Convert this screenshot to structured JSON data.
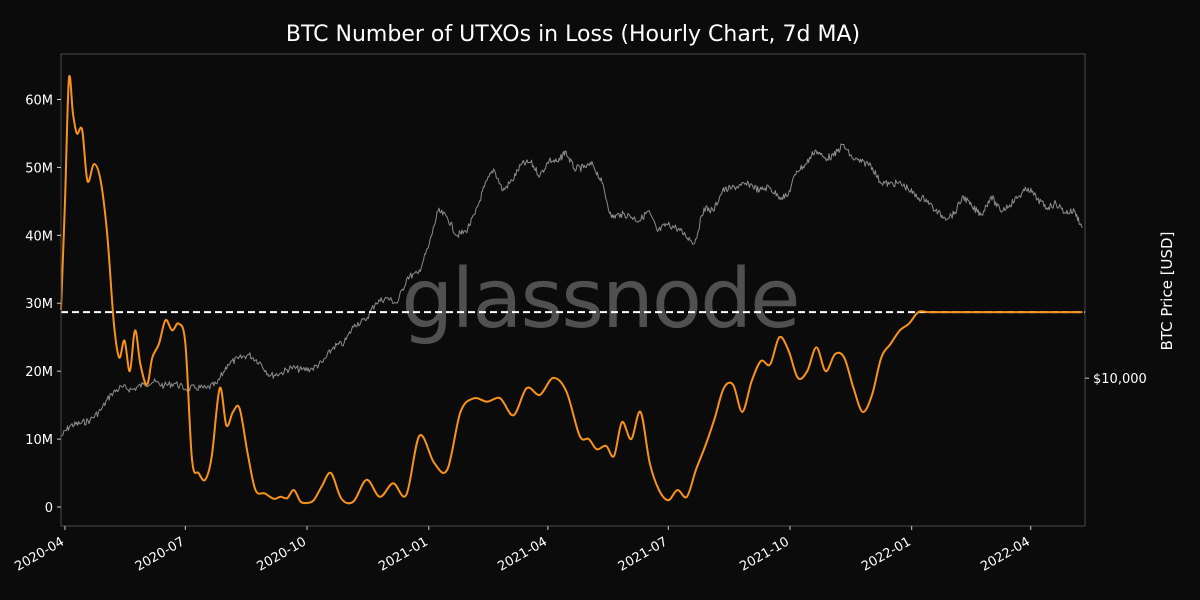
{
  "chart_data": {
    "type": "line",
    "title": "BTC Number of UTXOs in Loss (Hourly Chart, 7d MA)",
    "xlabel": "",
    "ylabel_left": "",
    "ylabel_right": "BTC Price [USD]",
    "watermark": "glassnode",
    "y_ticks": [
      {
        "value": 0,
        "label": "0"
      },
      {
        "value": 10000000,
        "label": "10M"
      },
      {
        "value": 20000000,
        "label": "20M"
      },
      {
        "value": 30000000,
        "label": "30M"
      },
      {
        "value": 40000000,
        "label": "40M"
      },
      {
        "value": 50000000,
        "label": "50M"
      },
      {
        "value": 60000000,
        "label": "60M"
      }
    ],
    "y_right_ticks": [
      {
        "value": 10000,
        "label": "$10,000"
      }
    ],
    "x_ticks": [
      {
        "date": "2020-04-01",
        "label": "2020-04"
      },
      {
        "date": "2020-07-01",
        "label": "2020-07"
      },
      {
        "date": "2020-10-01",
        "label": "2020-10"
      },
      {
        "date": "2021-01-01",
        "label": "2021-01"
      },
      {
        "date": "2021-04-01",
        "label": "2021-04"
      },
      {
        "date": "2021-07-01",
        "label": "2021-07"
      },
      {
        "date": "2021-10-01",
        "label": "2021-10"
      },
      {
        "date": "2022-01-01",
        "label": "2022-01"
      },
      {
        "date": "2022-04-01",
        "label": "2022-04"
      }
    ],
    "xlim": [
      "2020-03-29",
      "2022-05-12"
    ],
    "ylim": [
      -2800000,
      66700000
    ],
    "y2lim": [
      3000,
      140000
    ],
    "y2_scale": "log",
    "grid": false,
    "legend": "none",
    "reference_line": {
      "value": 28700000,
      "style": "dashed",
      "color": "#ffffff"
    },
    "series": [
      {
        "color": "#f7931a",
        "axis": "left",
        "x": [
          "2020-03-29",
          "2020-04-01",
          "2020-04-04",
          "2020-04-07",
          "2020-04-10",
          "2020-04-14",
          "2020-04-18",
          "2020-04-23",
          "2020-04-28",
          "2020-05-03",
          "2020-05-08",
          "2020-05-12",
          "2020-05-16",
          "2020-05-20",
          "2020-05-24",
          "2020-05-28",
          "2020-06-02",
          "2020-06-06",
          "2020-06-11",
          "2020-06-16",
          "2020-06-21",
          "2020-06-26",
          "2020-07-01",
          "2020-07-06",
          "2020-07-11",
          "2020-07-16",
          "2020-07-21",
          "2020-07-27",
          "2020-08-01",
          "2020-08-06",
          "2020-08-11",
          "2020-08-17",
          "2020-08-23",
          "2020-08-30",
          "2020-09-06",
          "2020-09-11",
          "2020-09-16",
          "2020-09-21",
          "2020-09-26",
          "2020-10-01",
          "2020-10-06",
          "2020-10-12",
          "2020-10-19",
          "2020-10-27",
          "2020-11-05",
          "2020-11-15",
          "2020-11-25",
          "2020-12-05",
          "2020-12-15",
          "2020-12-25",
          "2021-01-05",
          "2021-01-15",
          "2021-01-25",
          "2021-02-04",
          "2021-02-14",
          "2021-02-24",
          "2021-03-06",
          "2021-03-16",
          "2021-03-26",
          "2021-04-05",
          "2021-04-15",
          "2021-04-25",
          "2021-05-02",
          "2021-05-08",
          "2021-05-15",
          "2021-05-21",
          "2021-05-27",
          "2021-06-03",
          "2021-06-10",
          "2021-06-17",
          "2021-06-24",
          "2021-07-01",
          "2021-07-08",
          "2021-07-15",
          "2021-07-22",
          "2021-07-29",
          "2021-08-05",
          "2021-08-12",
          "2021-08-19",
          "2021-08-26",
          "2021-09-02",
          "2021-09-09",
          "2021-09-16",
          "2021-09-23",
          "2021-09-30",
          "2021-10-07",
          "2021-10-14",
          "2021-10-21",
          "2021-10-28",
          "2021-11-04",
          "2021-11-11",
          "2021-11-18",
          "2021-11-25",
          "2021-12-02",
          "2021-12-09",
          "2021-12-16",
          "2021-12-23",
          "2021-12-30",
          "2022-01-06",
          "2022-01-13",
          "2022-01-20",
          "2022-01-27",
          "2022-02-03",
          "2022-02-10",
          "2022-02-17",
          "2022-02-24",
          "2022-03-03",
          "2022-03-10",
          "2022-03-17",
          "2022-03-24",
          "2022-03-31",
          "2022-04-07",
          "2022-04-14",
          "2022-04-21",
          "2022-04-28",
          "2022-05-05",
          "2022-05-10"
        ],
        "values": [
          29000000,
          45000000,
          63000000,
          58000000,
          55000000,
          55500000,
          48000000,
          50500000,
          48000000,
          40000000,
          27000000,
          22000000,
          24500000,
          20000000,
          26000000,
          21000000,
          18000000,
          22000000,
          24000000,
          27500000,
          26000000,
          27000000,
          24000000,
          7000000,
          5000000,
          4000000,
          7500000,
          17500000,
          12000000,
          14000000,
          14500000,
          8000000,
          2500000,
          2000000,
          1200000,
          1500000,
          1300000,
          2500000,
          800000,
          600000,
          1000000,
          3000000,
          5000000,
          1200000,
          800000,
          4000000,
          1500000,
          3500000,
          1800000,
          10500000,
          6500000,
          5500000,
          14000000,
          16000000,
          15500000,
          16000000,
          13500000,
          17500000,
          16500000,
          19000000,
          17000000,
          10500000,
          10000000,
          8500000,
          9000000,
          7500000,
          12500000,
          10000000,
          14000000,
          6500000,
          2500000,
          1000000,
          2500000,
          1500000,
          5500000,
          9000000,
          13000000,
          17500000,
          18000000,
          14000000,
          18500000,
          21500000,
          21000000,
          25000000,
          23000000,
          19000000,
          20000000,
          23500000,
          20000000,
          22500000,
          22000000,
          17500000,
          14000000,
          16500000,
          22000000,
          24000000,
          26000000,
          27000000,
          28700000,
          28700000,
          28700000,
          28700000,
          28700000,
          28700000,
          28700000,
          28700000,
          28700000,
          28700000,
          28700000,
          28700000,
          28700000,
          28700000,
          28700000,
          28700000,
          28700000,
          28700000,
          28700000
        ]
      },
      {
        "color": "#8c8c8c",
        "axis": "right",
        "x": [
          "2020-03-29",
          "2020-04-05",
          "2020-04-12",
          "2020-04-20",
          "2020-04-28",
          "2020-05-06",
          "2020-05-14",
          "2020-05-22",
          "2020-05-30",
          "2020-06-07",
          "2020-06-15",
          "2020-06-23",
          "2020-07-01",
          "2020-07-09",
          "2020-07-17",
          "2020-07-25",
          "2020-08-02",
          "2020-08-10",
          "2020-08-18",
          "2020-08-26",
          "2020-09-03",
          "2020-09-11",
          "2020-09-19",
          "2020-09-27",
          "2020-10-05",
          "2020-10-13",
          "2020-10-21",
          "2020-10-29",
          "2020-11-06",
          "2020-11-14",
          "2020-11-22",
          "2020-11-30",
          "2020-12-08",
          "2020-12-16",
          "2020-12-24",
          "2021-01-01",
          "2021-01-08",
          "2021-01-15",
          "2021-01-22",
          "2021-01-29",
          "2021-02-05",
          "2021-02-12",
          "2021-02-19",
          "2021-02-26",
          "2021-03-05",
          "2021-03-12",
          "2021-03-19",
          "2021-03-26",
          "2021-04-02",
          "2021-04-09",
          "2021-04-14",
          "2021-04-21",
          "2021-04-28",
          "2021-05-05",
          "2021-05-12",
          "2021-05-19",
          "2021-05-26",
          "2021-06-02",
          "2021-06-09",
          "2021-06-16",
          "2021-06-23",
          "2021-06-30",
          "2021-07-07",
          "2021-07-14",
          "2021-07-21",
          "2021-07-28",
          "2021-08-04",
          "2021-08-11",
          "2021-08-18",
          "2021-08-25",
          "2021-09-01",
          "2021-09-08",
          "2021-09-15",
          "2021-09-22",
          "2021-09-29",
          "2021-10-06",
          "2021-10-13",
          "2021-10-20",
          "2021-10-27",
          "2021-11-03",
          "2021-11-10",
          "2021-11-17",
          "2021-11-24",
          "2021-12-01",
          "2021-12-08",
          "2021-12-15",
          "2021-12-22",
          "2021-12-29",
          "2022-01-05",
          "2022-01-12",
          "2022-01-19",
          "2022-01-26",
          "2022-02-02",
          "2022-02-09",
          "2022-02-16",
          "2022-02-23",
          "2022-03-02",
          "2022-03-09",
          "2022-03-16",
          "2022-03-23",
          "2022-03-30",
          "2022-04-06",
          "2022-04-13",
          "2022-04-20",
          "2022-04-27",
          "2022-05-04",
          "2022-05-10"
        ],
        "values": [
          6200,
          6800,
          6900,
          7100,
          7700,
          8800,
          9300,
          9100,
          9500,
          9700,
          9400,
          9600,
          9150,
          9250,
          9200,
          9550,
          11200,
          11700,
          12100,
          11400,
          10200,
          10400,
          10900,
          10700,
          10800,
          11400,
          12900,
          13300,
          15500,
          16000,
          18500,
          19200,
          18400,
          22800,
          23400,
          29300,
          39000,
          37000,
          32000,
          33000,
          38000,
          47500,
          55000,
          46000,
          50000,
          57000,
          58000,
          52000,
          59000,
          58000,
          63500,
          55000,
          55500,
          57000,
          49000,
          37000,
          38000,
          37500,
          36000,
          39000,
          33000,
          35000,
          34000,
          32000,
          30000,
          40000,
          39000,
          46000,
          47000,
          48000,
          48500,
          46000,
          47500,
          44000,
          43800,
          54000,
          57000,
          64000,
          60000,
          61000,
          67000,
          60000,
          58000,
          57000,
          49500,
          48500,
          49000,
          47000,
          43500,
          43000,
          39000,
          37000,
          38000,
          44000,
          40000,
          38000,
          44000,
          39000,
          41000,
          44000,
          47000,
          43000,
          40000,
          41500,
          38500,
          39000,
          34000
        ]
      }
    ]
  }
}
